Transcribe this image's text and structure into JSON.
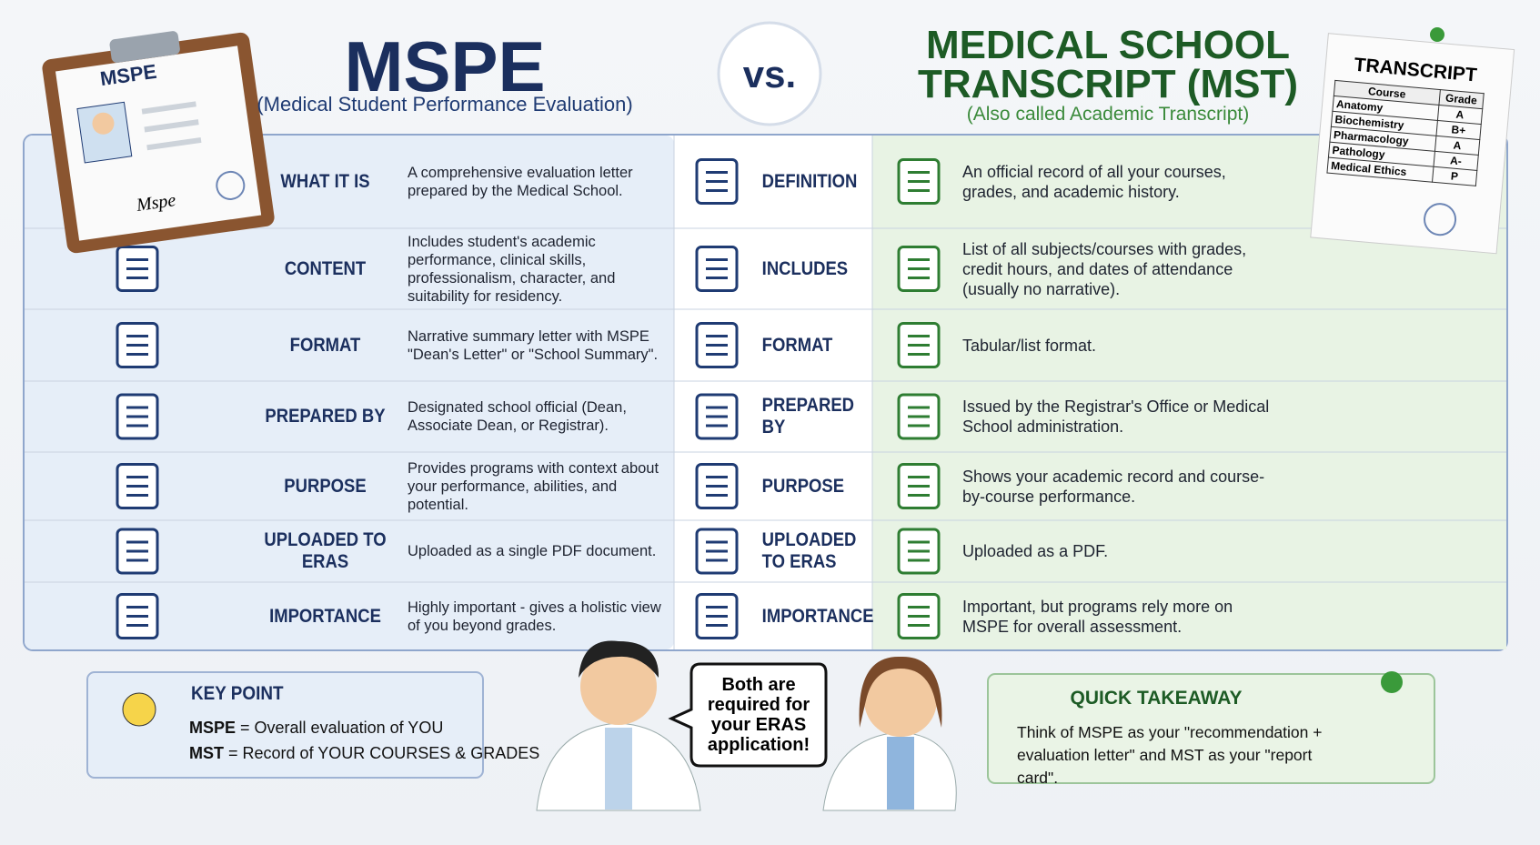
{
  "header": {
    "mspe_title": "MSPE",
    "mspe_subtitle": "(Medical Student Performance Evaluation)",
    "vs": "vs.",
    "mst_title": [
      "MEDICAL SCHOOL",
      "TRANSCRIPT (MST)"
    ],
    "mst_subtitle": "(Also called Academic Transcript)"
  },
  "clipboard": {
    "label": "MSPE",
    "signature": "Mspe"
  },
  "transcript_card": {
    "title": "TRANSCRIPT",
    "header": [
      "Course",
      "Grade"
    ],
    "rows": [
      [
        "Anatomy",
        "A"
      ],
      [
        "Biochemistry",
        "B+"
      ],
      [
        "Pharmacology",
        "A"
      ],
      [
        "Pathology",
        "A-"
      ],
      [
        "Medical Ethics",
        "P"
      ]
    ]
  },
  "table": {
    "rows": [
      {
        "mspe_label": "WHAT IT IS",
        "mspe_text": "A comprehensive evaluation letter prepared by the Medical School.",
        "mst_label": "DEFINITION",
        "mst_text": "An official record of all your courses, grades, and academic history."
      },
      {
        "mspe_label": "CONTENT",
        "mspe_text": "Includes student's academic performance, clinical skills, professionalism, character, and suitability for residency.",
        "mst_label": "INCLUDES",
        "mst_text": "List of all subjects/courses with grades, credit hours, and dates of attendance (usually no narrative)."
      },
      {
        "mspe_label": "FORMAT",
        "mspe_text": "Narrative summary letter with MSPE \"Dean's Letter\" or \"School Summary\".",
        "mst_label": "FORMAT",
        "mst_text": "Tabular/list format."
      },
      {
        "mspe_label": "PREPARED BY",
        "mspe_text": "Designated school official (Dean, Associate Dean, or Registrar).",
        "mst_label": "PREPARED BY",
        "mst_text": "Issued by the Registrar's Office or Medical School administration."
      },
      {
        "mspe_label": "PURPOSE",
        "mspe_text": "Provides programs with context about your performance, abilities, and potential.",
        "mst_label": "PURPOSE",
        "mst_text": "Shows your academic record and course-by-course performance."
      },
      {
        "mspe_label": "UPLOADED TO ERAS",
        "mspe_text": "Uploaded as a single PDF document.",
        "mst_label": "UPLOADED TO ERAS",
        "mst_text": "Uploaded as a PDF."
      },
      {
        "mspe_label": "IMPORTANCE",
        "mspe_text": "Highly important - gives a holistic view of you beyond grades.",
        "mst_label": "IMPORTANCE",
        "mst_text": "Important, but programs rely more on MSPE for overall assessment."
      }
    ]
  },
  "key_point": {
    "title": "KEY POINT",
    "lines": [
      {
        "term": "MSPE",
        "text": "= Overall evaluation of YOU"
      },
      {
        "term": "MST",
        "text": "= Record of YOUR COURSES & GRADES"
      }
    ]
  },
  "speech": "Both are required for your ERAS application!",
  "takeaway": {
    "title": "QUICK TAKEAWAY",
    "text": "Think of MSPE as your \"recommendation + evaluation letter\" and MST as your \"report card\"."
  }
}
